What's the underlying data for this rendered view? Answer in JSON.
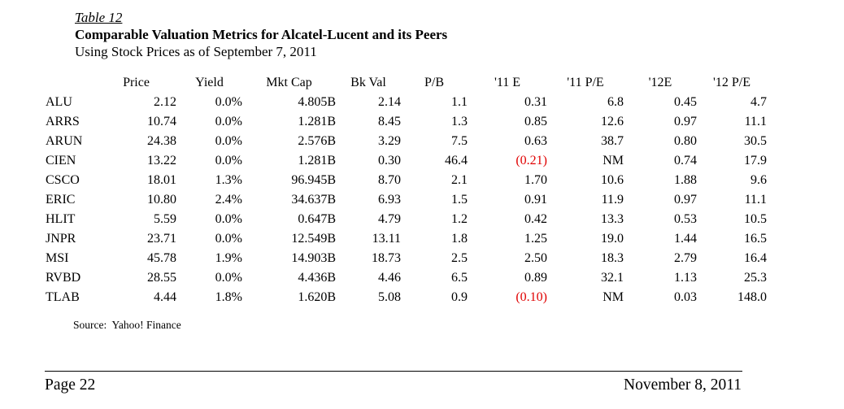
{
  "page": {
    "table_label": "Table 12",
    "title": "Comparable Valuation Metrics for Alcatel-Lucent and its Peers",
    "subtitle": "Using Stock Prices as of September 7, 2011",
    "source": "Source:  Yahoo! Finance",
    "footer_left": "Page 22",
    "footer_right": "November 8, 2011"
  },
  "colors": {
    "text": "#000000",
    "negative": "#e00000",
    "background": "#ffffff"
  },
  "table": {
    "columns": [
      "",
      "Price",
      "Yield",
      "Mkt Cap",
      "Bk Val",
      "P/B",
      "'11 E",
      "'11 P/E",
      "'12E",
      "'12 P/E"
    ],
    "rows": [
      {
        "ticker": "ALU",
        "values": [
          "2.12",
          "0.0%",
          "4.805B",
          "2.14",
          "1.1",
          "0.31",
          "6.8",
          "0.45",
          "4.7"
        ]
      },
      {
        "ticker": "ARRS",
        "values": [
          "10.74",
          "0.0%",
          "1.281B",
          "8.45",
          "1.3",
          "0.85",
          "12.6",
          "0.97",
          "11.1"
        ]
      },
      {
        "ticker": "ARUN",
        "values": [
          "24.38",
          "0.0%",
          "2.576B",
          "3.29",
          "7.5",
          "0.63",
          "38.7",
          "0.80",
          "30.5"
        ]
      },
      {
        "ticker": "CIEN",
        "values": [
          "13.22",
          "0.0%",
          "1.281B",
          "0.30",
          "46.4",
          "(0.21)",
          "NM",
          "0.74",
          "17.9"
        ]
      },
      {
        "ticker": "CSCO",
        "values": [
          "18.01",
          "1.3%",
          "96.945B",
          "8.70",
          "2.1",
          "1.70",
          "10.6",
          "1.88",
          "9.6"
        ]
      },
      {
        "ticker": "ERIC",
        "values": [
          "10.80",
          "2.4%",
          "34.637B",
          "6.93",
          "1.5",
          "0.91",
          "11.9",
          "0.97",
          "11.1"
        ]
      },
      {
        "ticker": "HLIT",
        "values": [
          "5.59",
          "0.0%",
          "0.647B",
          "4.79",
          "1.2",
          "0.42",
          "13.3",
          "0.53",
          "10.5"
        ]
      },
      {
        "ticker": "JNPR",
        "values": [
          "23.71",
          "0.0%",
          "12.549B",
          "13.11",
          "1.8",
          "1.25",
          "19.0",
          "1.44",
          "16.5"
        ]
      },
      {
        "ticker": "MSI",
        "values": [
          "45.78",
          "1.9%",
          "14.903B",
          "18.73",
          "2.5",
          "2.50",
          "18.3",
          "2.79",
          "16.4"
        ]
      },
      {
        "ticker": "RVBD",
        "values": [
          "28.55",
          "0.0%",
          "4.436B",
          "4.46",
          "6.5",
          "0.89",
          "32.1",
          "1.13",
          "25.3"
        ]
      },
      {
        "ticker": "TLAB",
        "values": [
          "4.44",
          "1.8%",
          "1.620B",
          "5.08",
          "0.9",
          "(0.10)",
          "NM",
          "0.03",
          "148.0"
        ]
      }
    ]
  }
}
